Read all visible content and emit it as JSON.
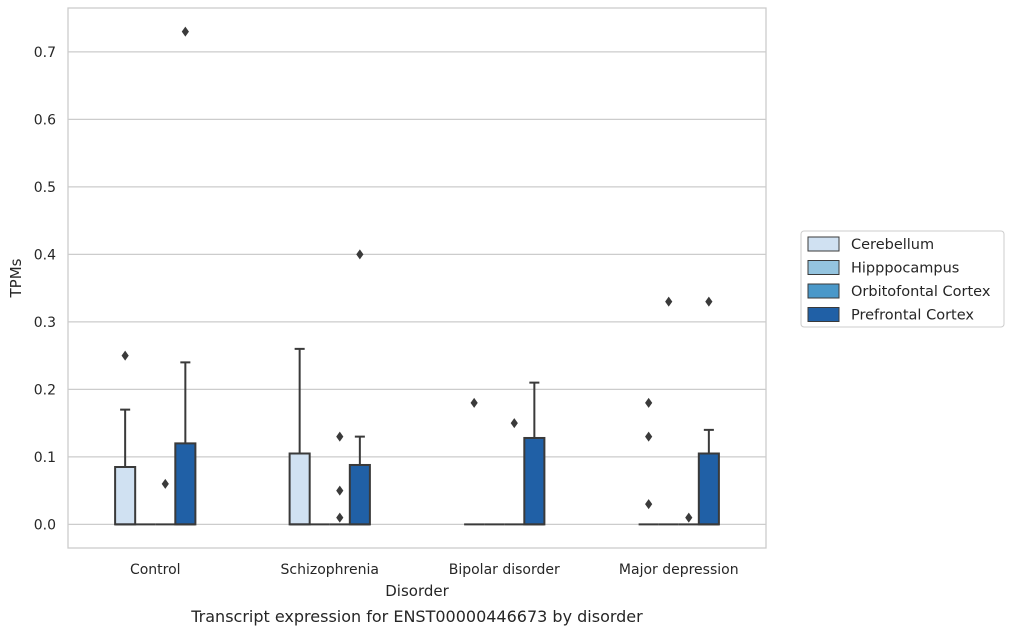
{
  "chart_data": {
    "type": "box",
    "title": "",
    "caption": "Transcript expression for ENST00000446673 by disorder",
    "xlabel": "Disorder",
    "ylabel": "TPMs",
    "ylim": [
      -0.035,
      0.765
    ],
    "yticks": [
      "0.0",
      "0.1",
      "0.2",
      "0.3",
      "0.4",
      "0.5",
      "0.6",
      "0.7"
    ],
    "grid": "horizontal",
    "legend_placement": "right-center",
    "categories": [
      "Control",
      "Schizophrenia",
      "Bipolar disorder",
      "Major depression"
    ],
    "series": [
      {
        "name": "Cerebellum",
        "color": "#d0e1f2",
        "boxes": [
          {
            "q1": 0.0,
            "median": 0.0,
            "q3": 0.085,
            "whisker_low": 0.0,
            "whisker_high": 0.17,
            "outliers": [
              0.25
            ]
          },
          {
            "q1": 0.0,
            "median": 0.0,
            "q3": 0.105,
            "whisker_low": 0.0,
            "whisker_high": 0.26,
            "outliers": []
          },
          {
            "q1": 0.0,
            "median": 0.0,
            "q3": 0.0,
            "whisker_low": 0.0,
            "whisker_high": 0.0,
            "outliers": [
              0.18
            ]
          },
          {
            "q1": 0.0,
            "median": 0.0,
            "q3": 0.0,
            "whisker_low": 0.0,
            "whisker_high": 0.0,
            "outliers": [
              0.03,
              0.13,
              0.18
            ]
          }
        ]
      },
      {
        "name": "Hipppocampus",
        "color": "#94c4df",
        "boxes": [
          {
            "q1": 0.0,
            "median": 0.0,
            "q3": 0.0,
            "whisker_low": 0.0,
            "whisker_high": 0.0,
            "outliers": []
          },
          {
            "q1": 0.0,
            "median": 0.0,
            "q3": 0.0,
            "whisker_low": 0.0,
            "whisker_high": 0.0,
            "outliers": []
          },
          {
            "q1": 0.0,
            "median": 0.0,
            "q3": 0.0,
            "whisker_low": 0.0,
            "whisker_high": 0.0,
            "outliers": []
          },
          {
            "q1": 0.0,
            "median": 0.0,
            "q3": 0.0,
            "whisker_low": 0.0,
            "whisker_high": 0.0,
            "outliers": [
              0.33
            ]
          }
        ]
      },
      {
        "name": "Orbitofontal Cortex",
        "color": "#4a98c9",
        "boxes": [
          {
            "q1": 0.0,
            "median": 0.0,
            "q3": 0.0,
            "whisker_low": 0.0,
            "whisker_high": 0.0,
            "outliers": [
              0.06
            ]
          },
          {
            "q1": 0.0,
            "median": 0.0,
            "q3": 0.0,
            "whisker_low": 0.0,
            "whisker_high": 0.0,
            "outliers": [
              0.01,
              0.05,
              0.13
            ]
          },
          {
            "q1": 0.0,
            "median": 0.0,
            "q3": 0.0,
            "whisker_low": 0.0,
            "whisker_high": 0.0,
            "outliers": [
              0.15
            ]
          },
          {
            "q1": 0.0,
            "median": 0.0,
            "q3": 0.0,
            "whisker_low": 0.0,
            "whisker_high": 0.0,
            "outliers": [
              0.01
            ]
          }
        ]
      },
      {
        "name": "Prefrontal Cortex",
        "color": "#2060a6",
        "boxes": [
          {
            "q1": 0.0,
            "median": 0.0,
            "q3": 0.12,
            "whisker_low": 0.0,
            "whisker_high": 0.24,
            "outliers": [
              0.73
            ]
          },
          {
            "q1": 0.0,
            "median": 0.0,
            "q3": 0.088,
            "whisker_low": 0.0,
            "whisker_high": 0.13,
            "outliers": [
              0.4
            ]
          },
          {
            "q1": 0.0,
            "median": 0.0,
            "q3": 0.128,
            "whisker_low": 0.0,
            "whisker_high": 0.21,
            "outliers": []
          },
          {
            "q1": 0.0,
            "median": 0.0,
            "q3": 0.105,
            "whisker_low": 0.0,
            "whisker_high": 0.14,
            "outliers": [
              0.33
            ]
          }
        ]
      }
    ]
  }
}
